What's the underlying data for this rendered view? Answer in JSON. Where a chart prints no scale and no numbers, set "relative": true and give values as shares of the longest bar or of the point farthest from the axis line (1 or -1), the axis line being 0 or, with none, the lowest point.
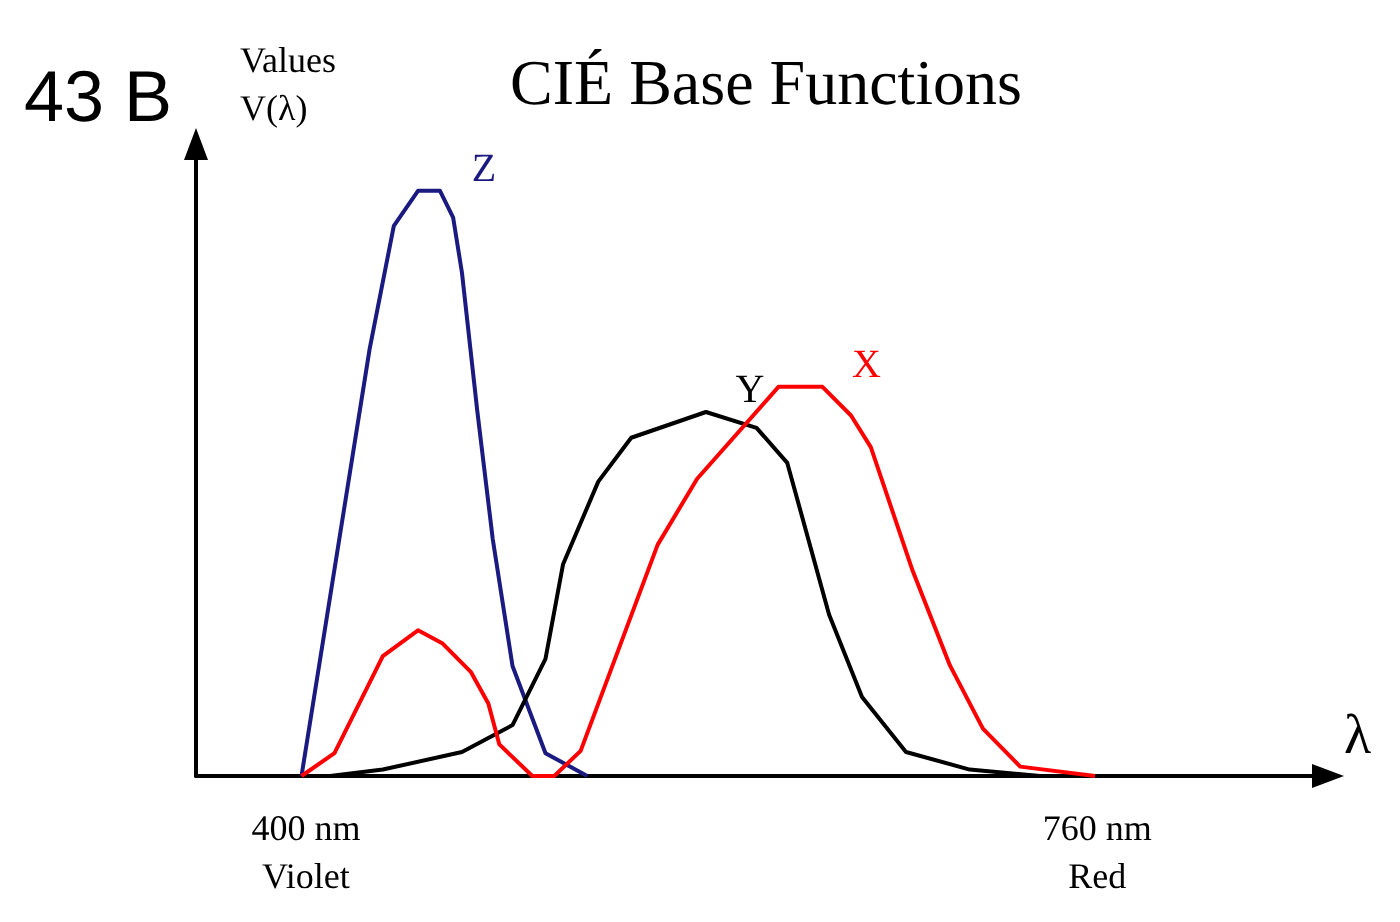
{
  "chart_data": {
    "type": "line",
    "title": "CIÉ Base Functions",
    "annotations": [
      "43 B"
    ],
    "xlabel": "λ",
    "ylabel": "Values\nV(λ)",
    "relative": true,
    "xlim": [
      350,
      865
    ],
    "xticks": [
      {
        "value": 400,
        "label": "400 nm\nViolet"
      },
      {
        "value": 760,
        "label": "760 nm\nRed"
      }
    ],
    "grid": false,
    "legend": false,
    "marker": "none",
    "series": [
      {
        "name": "Z",
        "color": "#1a1a80",
        "x": [
          398,
          429,
          440,
          451,
          461,
          467,
          471,
          478,
          485,
          494,
          509,
          528
        ],
        "values": [
          0,
          0.73,
          0.94,
          1,
          1,
          0.954,
          0.86,
          0.623,
          0.405,
          0.188,
          0.039,
          0
        ]
      },
      {
        "name": "Y",
        "color": "#000000",
        "x": [
          411,
          435,
          471,
          494,
          509,
          517,
          533,
          548,
          582,
          605,
          619,
          638,
          653,
          673,
          702,
          734
        ],
        "values": [
          0,
          0.011,
          0.041,
          0.087,
          0.2,
          0.362,
          0.503,
          0.578,
          0.622,
          0.595,
          0.535,
          0.276,
          0.135,
          0.041,
          0.011,
          0
        ]
      },
      {
        "name": "X",
        "color": "#ff0000",
        "x": [
          398,
          413,
          435,
          451,
          462,
          475,
          483,
          488,
          503,
          513,
          525,
          560,
          578,
          615,
          635,
          648,
          657,
          676,
          693,
          708,
          725,
          759
        ],
        "values": [
          0,
          0.039,
          0.205,
          0.249,
          0.227,
          0.178,
          0.124,
          0.054,
          0,
          0,
          0.043,
          0.395,
          0.508,
          0.665,
          0.665,
          0.616,
          0.562,
          0.351,
          0.189,
          0.081,
          0.016,
          0
        ]
      }
    ]
  }
}
